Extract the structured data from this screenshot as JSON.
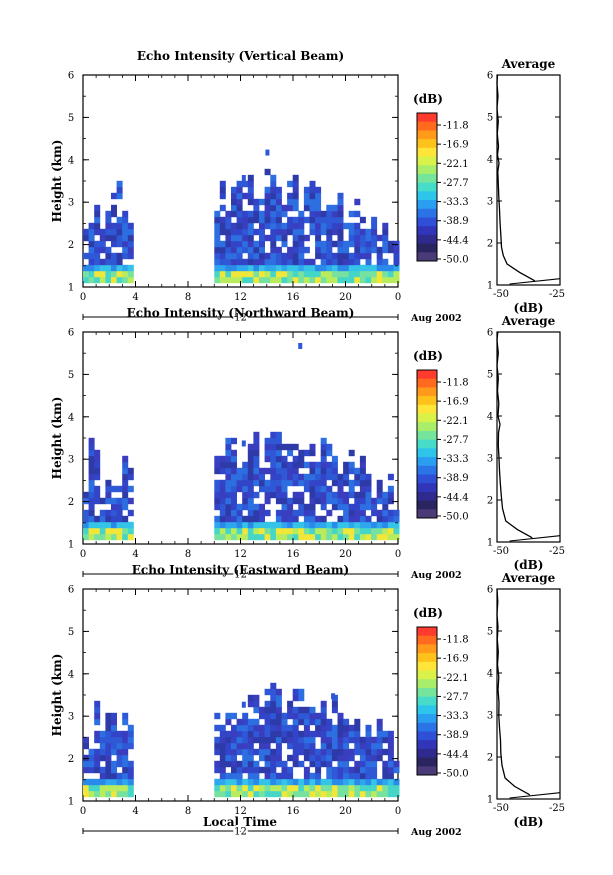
{
  "footer": {
    "xlabel": "Local Time"
  },
  "chart_data": [
    {
      "type": "heatmap",
      "title": "Echo Intensity (Vertical Beam)",
      "ylabel": "Height (km)",
      "xlabel": "",
      "x_ticks": [
        "0",
        "4",
        "8",
        "12",
        "16",
        "20",
        "0"
      ],
      "y_ticks": [
        "1",
        "2",
        "3",
        "4",
        "5",
        "6"
      ],
      "xlim": [
        0,
        24
      ],
      "ylim": [
        1,
        6
      ],
      "day_label": "12",
      "date_label": "Aug 2002",
      "colorbar": {
        "unit": "(dB)",
        "levels": [
          "-11.8",
          "-16.9",
          "-22.1",
          "-27.7",
          "-33.3",
          "-38.9",
          "-44.4",
          "-50.0"
        ]
      },
      "active_periods_hours": [
        [
          0,
          3.8
        ],
        [
          10,
          24
        ]
      ],
      "max_echo_top_km": [
        3.5,
        4.1
      ],
      "profile": {
        "title": "Average",
        "xlabel": "(dB)",
        "x_ticks": [
          "-50",
          "-25"
        ],
        "y_ticks": [
          "1",
          "2",
          "3",
          "4",
          "5",
          "6"
        ],
        "xlim": [
          -50,
          -25
        ],
        "ylim": [
          1,
          6
        ],
        "points": [
          [
            -35,
            1.1
          ],
          [
            -41,
            1.3
          ],
          [
            -46,
            1.5
          ],
          [
            -47.5,
            1.7
          ],
          [
            -48.2,
            1.9
          ],
          [
            -48.5,
            2.2
          ],
          [
            -48.8,
            2.5
          ],
          [
            -49,
            2.8
          ],
          [
            -49.3,
            3.1
          ],
          [
            -49.5,
            3.4
          ],
          [
            -49.7,
            3.7
          ],
          [
            -49.2,
            3.9
          ],
          [
            -49.8,
            4.1
          ],
          [
            -49.4,
            4.3
          ],
          [
            -49.9,
            4.6
          ],
          [
            -49.5,
            4.9
          ],
          [
            -50,
            5.2
          ],
          [
            -49.6,
            5.5
          ],
          [
            -50,
            5.8
          ],
          [
            -49.8,
            6
          ]
        ]
      }
    },
    {
      "type": "heatmap",
      "title": "Echo Intensity (Northward Beam)",
      "ylabel": "Height (km)",
      "xlabel": "",
      "x_ticks": [
        "0",
        "4",
        "8",
        "12",
        "16",
        "20",
        "0"
      ],
      "y_ticks": [
        "1",
        "2",
        "3",
        "4",
        "5",
        "6"
      ],
      "xlim": [
        0,
        24
      ],
      "ylim": [
        1,
        6
      ],
      "day_label": "12",
      "date_label": "Aug 2002",
      "colorbar": {
        "unit": "(dB)",
        "levels": [
          "-11.8",
          "-16.9",
          "-22.1",
          "-27.7",
          "-33.3",
          "-38.9",
          "-44.4",
          "-50.0"
        ]
      },
      "active_periods_hours": [
        [
          0,
          3.8
        ],
        [
          10,
          24
        ]
      ],
      "max_echo_top_km": [
        3.3,
        5.6
      ],
      "profile": {
        "title": "Average",
        "xlabel": "(dB)",
        "x_ticks": [
          "-50",
          "-25"
        ],
        "y_ticks": [
          "1",
          "2",
          "3",
          "4",
          "5",
          "6"
        ],
        "xlim": [
          -50,
          -25
        ],
        "ylim": [
          1,
          6
        ],
        "points": [
          [
            -36,
            1.1
          ],
          [
            -42,
            1.3
          ],
          [
            -46.5,
            1.5
          ],
          [
            -47.8,
            1.8
          ],
          [
            -48.3,
            2.1
          ],
          [
            -48.7,
            2.4
          ],
          [
            -49,
            2.7
          ],
          [
            -49.2,
            3
          ],
          [
            -49.5,
            3.3
          ],
          [
            -49.4,
            3.6
          ],
          [
            -48.8,
            3.8
          ],
          [
            -49.6,
            4
          ],
          [
            -49.3,
            4.3
          ],
          [
            -49.8,
            4.6
          ],
          [
            -49.5,
            4.9
          ],
          [
            -50,
            5.2
          ],
          [
            -49.5,
            5.5
          ],
          [
            -50,
            5.8
          ],
          [
            -49.7,
            6
          ]
        ]
      }
    },
    {
      "type": "heatmap",
      "title": "Echo Intensity (Eastward Beam)",
      "ylabel": "Height (km)",
      "xlabel": "",
      "x_ticks": [
        "0",
        "4",
        "8",
        "12",
        "16",
        "20",
        "0"
      ],
      "y_ticks": [
        "1",
        "2",
        "3",
        "4",
        "5",
        "6"
      ],
      "xlim": [
        0,
        24
      ],
      "ylim": [
        1,
        6
      ],
      "day_label": "12",
      "date_label": "Aug 2002",
      "colorbar": {
        "unit": "(dB)",
        "levels": [
          "-11.8",
          "-16.9",
          "-22.1",
          "-27.7",
          "-33.3",
          "-38.9",
          "-44.4",
          "-50.0"
        ]
      },
      "active_periods_hours": [
        [
          0,
          3.8
        ],
        [
          10,
          24
        ]
      ],
      "max_echo_top_km": [
        3.2,
        3.4
      ],
      "profile": {
        "title": "Average",
        "xlabel": "(dB)",
        "x_ticks": [
          "-50",
          "-25"
        ],
        "y_ticks": [
          "1",
          "2",
          "3",
          "4",
          "5",
          "6"
        ],
        "xlim": [
          -50,
          -25
        ],
        "ylim": [
          1,
          6
        ],
        "points": [
          [
            -37,
            1.1
          ],
          [
            -43,
            1.3
          ],
          [
            -46.8,
            1.5
          ],
          [
            -48,
            1.8
          ],
          [
            -48.5,
            2.1
          ],
          [
            -48.6,
            2.4
          ],
          [
            -49,
            2.7
          ],
          [
            -49.3,
            3
          ],
          [
            -49.2,
            3.3
          ],
          [
            -49.6,
            3.6
          ],
          [
            -49.3,
            3.9
          ],
          [
            -49.8,
            4.2
          ],
          [
            -49.5,
            4.5
          ],
          [
            -49.9,
            4.8
          ],
          [
            -49.6,
            5.1
          ],
          [
            -50,
            5.4
          ],
          [
            -49.7,
            5.7
          ],
          [
            -50,
            6
          ]
        ]
      }
    }
  ]
}
